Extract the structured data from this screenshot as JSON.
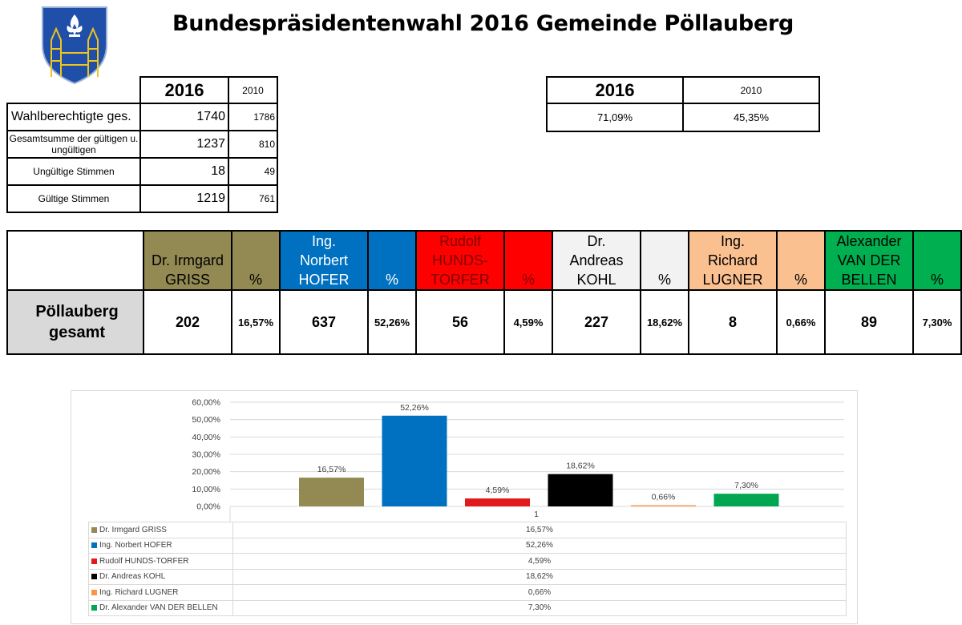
{
  "title": "Bundespräsidentenwahl 2016 Gemeinde Pöllauberg",
  "stats": {
    "header_2016": "2016",
    "header_2010": "2010",
    "rows": [
      {
        "label": "Wahlberechtigte ges.",
        "v2016": "1740",
        "v2010": "1786"
      },
      {
        "label": "Gesamtsumme der gültigen u. ungültigen",
        "v2016": "1237",
        "v2010": "810"
      },
      {
        "label": "Ungültige Stimmen",
        "v2016": "18",
        "v2010": "49"
      },
      {
        "label": "Gültige Stimmen",
        "v2016": "1219",
        "v2010": "761"
      }
    ]
  },
  "turnout": {
    "header_2016": "2016",
    "header_2010": "2010",
    "value_2016": "71,09%",
    "value_2010": "45,35%"
  },
  "results": {
    "place": "Pöllauberg gesamt",
    "pct_header": "%",
    "candidates": [
      {
        "name": "Dr. Irmgard GRISS",
        "votes": "202",
        "pct": "16,57%",
        "color": "#938953"
      },
      {
        "name": "Ing. Norbert HOFER",
        "votes": "637",
        "pct": "52,26%",
        "color": "#0070c0"
      },
      {
        "name": "Rudolf HUNDS-TORFER",
        "votes": "56",
        "pct": "4,59%",
        "color": "#ff0000"
      },
      {
        "name": "Dr. Andreas KOHL",
        "votes": "227",
        "pct": "18,62%",
        "color": "#f2f2f2"
      },
      {
        "name": "Ing. Richard LUGNER",
        "votes": "8",
        "pct": "0,66%",
        "color": "#fac090"
      },
      {
        "name": "Alexander VAN DER BELLEN",
        "votes": "89",
        "pct": "7,30%",
        "color": "#00b050"
      }
    ]
  },
  "chart_data": {
    "type": "bar",
    "categories": [
      "1"
    ],
    "ylim": [
      0,
      60
    ],
    "yticks": [
      "0,00%",
      "10,00%",
      "20,00%",
      "30,00%",
      "40,00%",
      "50,00%",
      "60,00%"
    ],
    "grid": true,
    "series": [
      {
        "name": "Dr. Irmgard GRISS",
        "values": [
          16.57
        ],
        "label": "16,57%",
        "color": "#938953"
      },
      {
        "name": "Ing. Norbert HOFER",
        "values": [
          52.26
        ],
        "label": "52,26%",
        "color": "#0070c0"
      },
      {
        "name": "Rudolf HUNDS-TORFER",
        "values": [
          4.59
        ],
        "label": "4,59%",
        "color": "#e31a1c"
      },
      {
        "name": "Dr. Andreas KOHL",
        "values": [
          18.62
        ],
        "label": "18,62%",
        "color": "#000000"
      },
      {
        "name": "Ing. Richard LUGNER",
        "values": [
          0.66
        ],
        "label": "0,66%",
        "color": "#f79646"
      },
      {
        "name": "Dr. Alexander VAN DER BELLEN",
        "values": [
          7.3
        ],
        "label": "7,30%",
        "color": "#00a651"
      }
    ]
  }
}
